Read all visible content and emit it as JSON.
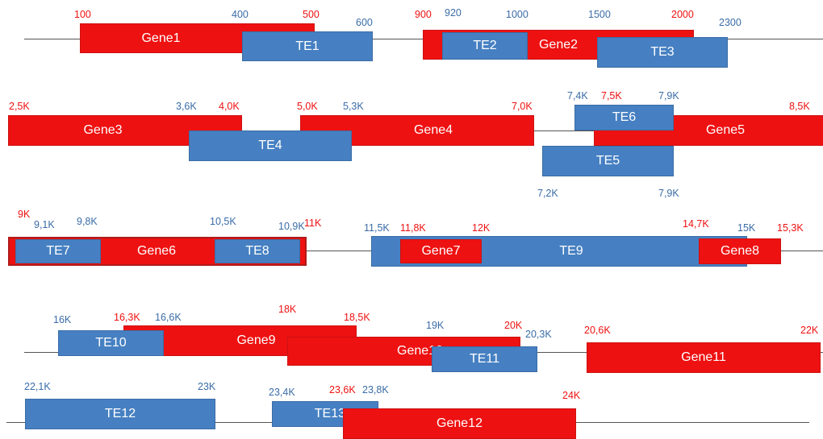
{
  "colors": {
    "gene": "#ee1111",
    "te": "#4680c2",
    "line": "#555555"
  },
  "rows": [
    {
      "features": [
        {
          "name": "Gene1",
          "type": "gene"
        },
        {
          "name": "TE1",
          "type": "te"
        },
        {
          "name": "TE2",
          "type": "te"
        },
        {
          "name": "Gene2",
          "type": "gene"
        },
        {
          "name": "TE3",
          "type": "te"
        }
      ],
      "labels": [
        {
          "text": "100",
          "color": "red"
        },
        {
          "text": "400",
          "color": "blue"
        },
        {
          "text": "500",
          "color": "red"
        },
        {
          "text": "600",
          "color": "blue"
        },
        {
          "text": "900",
          "color": "red"
        },
        {
          "text": "920",
          "color": "blue"
        },
        {
          "text": "1000",
          "color": "blue"
        },
        {
          "text": "1500",
          "color": "blue"
        },
        {
          "text": "2000",
          "color": "red"
        },
        {
          "text": "2300",
          "color": "blue"
        }
      ]
    },
    {
      "features": [
        {
          "name": "Gene3",
          "type": "gene"
        },
        {
          "name": "Gene4",
          "type": "gene"
        },
        {
          "name": "TE4",
          "type": "te"
        },
        {
          "name": "Gene5",
          "type": "gene"
        },
        {
          "name": "TE6",
          "type": "te"
        },
        {
          "name": "TE5",
          "type": "te"
        }
      ],
      "labels": [
        {
          "text": "2,5K",
          "color": "red"
        },
        {
          "text": "3,6K",
          "color": "blue"
        },
        {
          "text": "4,0K",
          "color": "red"
        },
        {
          "text": "5,0K",
          "color": "red"
        },
        {
          "text": "5,3K",
          "color": "blue"
        },
        {
          "text": "7,0K",
          "color": "red"
        },
        {
          "text": "7,4K",
          "color": "blue"
        },
        {
          "text": "7,5K",
          "color": "red"
        },
        {
          "text": "7,9K",
          "color": "blue"
        },
        {
          "text": "8,5K",
          "color": "red"
        },
        {
          "text": "7,2K",
          "color": "blue"
        },
        {
          "text": "7,9K",
          "color": "blue"
        }
      ]
    },
    {
      "features": [
        {
          "name": "Gene6",
          "type": "gene"
        },
        {
          "name": "TE7",
          "type": "te"
        },
        {
          "name": "TE8",
          "type": "te"
        },
        {
          "name": "TE9",
          "type": "te"
        },
        {
          "name": "Gene7",
          "type": "gene"
        },
        {
          "name": "Gene8",
          "type": "gene"
        }
      ],
      "labels": [
        {
          "text": "9K",
          "color": "red"
        },
        {
          "text": "9,1K",
          "color": "blue"
        },
        {
          "text": "9,8K",
          "color": "blue"
        },
        {
          "text": "10,5K",
          "color": "blue"
        },
        {
          "text": "10,9K",
          "color": "blue"
        },
        {
          "text": "11K",
          "color": "red"
        },
        {
          "text": "11,5K",
          "color": "blue"
        },
        {
          "text": "11,8K",
          "color": "red"
        },
        {
          "text": "12K",
          "color": "red"
        },
        {
          "text": "14,7K",
          "color": "red"
        },
        {
          "text": "15K",
          "color": "blue"
        },
        {
          "text": "15,3K",
          "color": "red"
        }
      ]
    },
    {
      "features": [
        {
          "name": "Gene9",
          "type": "gene"
        },
        {
          "name": "TE10",
          "type": "te"
        },
        {
          "name": "Gene10",
          "type": "gene"
        },
        {
          "name": "TE11",
          "type": "te"
        },
        {
          "name": "Gene11",
          "type": "gene"
        }
      ],
      "labels": [
        {
          "text": "16K",
          "color": "blue"
        },
        {
          "text": "16,3K",
          "color": "red"
        },
        {
          "text": "16,6K",
          "color": "blue"
        },
        {
          "text": "18K",
          "color": "red"
        },
        {
          "text": "18,5K",
          "color": "red"
        },
        {
          "text": "19K",
          "color": "blue"
        },
        {
          "text": "20K",
          "color": "red"
        },
        {
          "text": "20,3K",
          "color": "blue"
        },
        {
          "text": "20,6K",
          "color": "red"
        },
        {
          "text": "22K",
          "color": "red"
        }
      ]
    },
    {
      "features": [
        {
          "name": "TE12",
          "type": "te"
        },
        {
          "name": "TE13",
          "type": "te"
        },
        {
          "name": "Gene12",
          "type": "gene"
        }
      ],
      "labels": [
        {
          "text": "22,1K",
          "color": "blue"
        },
        {
          "text": "23K",
          "color": "blue"
        },
        {
          "text": "23,4K",
          "color": "blue"
        },
        {
          "text": "23,6K",
          "color": "red"
        },
        {
          "text": "23,8K",
          "color": "blue"
        },
        {
          "text": "24K",
          "color": "red"
        }
      ]
    }
  ]
}
